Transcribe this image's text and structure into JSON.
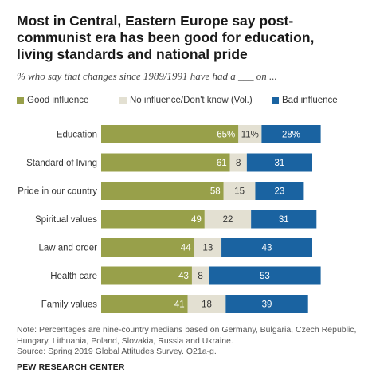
{
  "title": "Most in Central, Eastern Europe say post-communist era has been good for education, living standards and national pride",
  "subtitle": "% who say that changes since 1989/1991 have had a ___ on ...",
  "colors": {
    "good": "#98a04a",
    "none": "#e3e0d2",
    "bad": "#1a63a1",
    "text": "#222222"
  },
  "chart_data": {
    "type": "bar",
    "orientation": "horizontal",
    "stacked": true,
    "legend_position": "top",
    "categories": [
      "Education",
      "Standard of living",
      "Pride in our country",
      "Spiritual values",
      "Law and order",
      "Health care",
      "Family values"
    ],
    "series": [
      {
        "name": "Good influence",
        "values": [
          65,
          61,
          58,
          49,
          44,
          43,
          41
        ],
        "labels": [
          "65%",
          "61",
          "58",
          "49",
          "44",
          "43",
          "41"
        ]
      },
      {
        "name": "No influence/Don't know (Vol.)",
        "values": [
          11,
          8,
          15,
          22,
          13,
          8,
          18
        ],
        "labels": [
          "11%",
          "8",
          "15",
          "22",
          "13",
          "8",
          "18"
        ]
      },
      {
        "name": "Bad influence",
        "values": [
          28,
          31,
          23,
          31,
          43,
          53,
          39
        ],
        "labels": [
          "28%",
          "31",
          "23",
          "31",
          "43",
          "53",
          "39"
        ]
      }
    ]
  },
  "note": "Note: Percentages are nine-country medians based on Germany, Bulgaria, Czech Republic, Hungary, Lithuania, Poland, Slovakia, Russia and Ukraine.",
  "source": "Source: Spring 2019 Global Attitudes Survey. Q21a-g.",
  "brand": "PEW RESEARCH CENTER"
}
